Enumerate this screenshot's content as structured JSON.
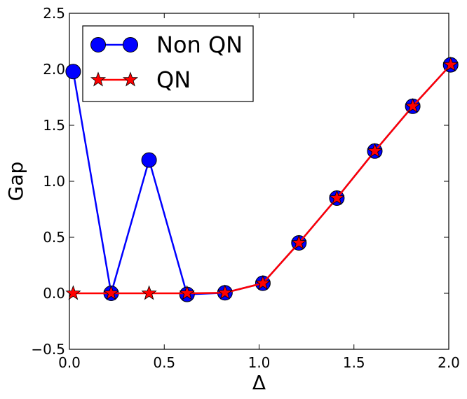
{
  "chart_data": {
    "type": "line",
    "xlabel": "Δ",
    "ylabel": "Gap",
    "xlim": [
      0.0,
      2.0
    ],
    "ylim": [
      -0.5,
      2.5
    ],
    "xticks": [
      "0.0",
      "0.5",
      "1.0",
      "1.5",
      "2.0"
    ],
    "yticks": [
      "−0.5",
      "0.0",
      "0.5",
      "1.0",
      "1.5",
      "2.0",
      "2.5"
    ],
    "xtick_values": [
      0.0,
      0.5,
      1.0,
      1.5,
      2.0
    ],
    "ytick_values": [
      -0.5,
      0.0,
      0.5,
      1.0,
      1.5,
      2.0,
      2.5
    ],
    "grid": false,
    "legend_position": "top-left",
    "x": [
      0.02,
      0.22,
      0.42,
      0.62,
      0.82,
      1.02,
      1.21,
      1.41,
      1.61,
      1.81,
      2.01
    ],
    "series": [
      {
        "name": "Non QN",
        "marker": "circle",
        "line_color": "#0000ff",
        "marker_color": "#0000ff",
        "values": [
          1.98,
          0.0,
          1.19,
          -0.01,
          0.005,
          0.09,
          0.45,
          0.85,
          1.27,
          1.67,
          2.04
        ]
      },
      {
        "name": "QN",
        "marker": "star",
        "line_color": "#ff0000",
        "marker_color": "#ff0000",
        "values": [
          0.0,
          0.0,
          0.0,
          0.0,
          0.005,
          0.09,
          0.45,
          0.85,
          1.27,
          1.67,
          2.04
        ]
      }
    ]
  }
}
